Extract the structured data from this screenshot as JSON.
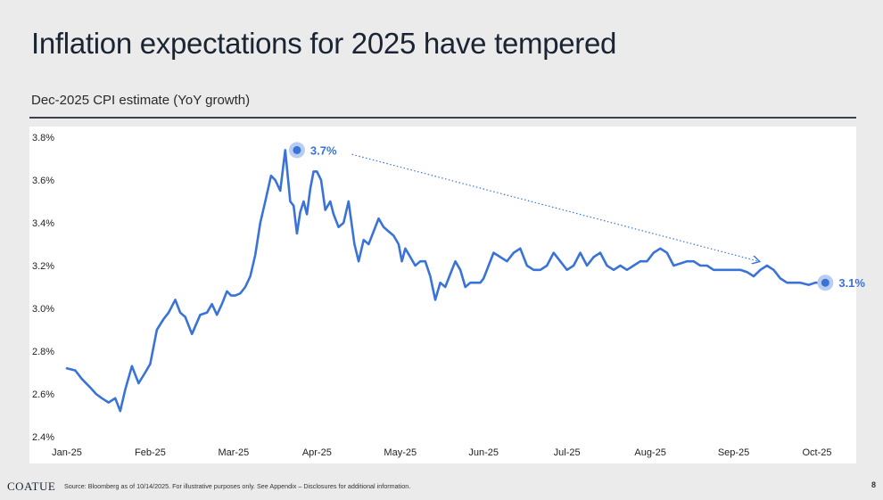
{
  "header": {
    "title": "Inflation expectations for 2025 have tempered",
    "subtitle": "Dec-2025 CPI estimate (YoY growth)"
  },
  "footer": {
    "logo": "COATUE",
    "source": "Source: Bloomberg as of 10/14/2025. For illustrative purposes only. See Appendix – Disclosures for additional information.",
    "page_number": "8"
  },
  "colors": {
    "line": "#3a73d8",
    "marker_halo": "#b9cdf2",
    "background": "#ebebeb",
    "panel": "#ffffff"
  },
  "chart_data": {
    "type": "line",
    "title": "Dec-2025 CPI estimate (YoY growth)",
    "xlabel": "",
    "ylabel": "",
    "ylim": [
      2.4,
      3.8
    ],
    "y_ticks": [
      2.4,
      2.6,
      2.8,
      3.0,
      3.2,
      3.4,
      3.6,
      3.8
    ],
    "y_tick_labels": [
      "2.4%",
      "2.6%",
      "2.8%",
      "3.0%",
      "3.2%",
      "3.4%",
      "3.6%",
      "3.8%"
    ],
    "x_tick_labels": [
      "Jan-25",
      "Feb-25",
      "Mar-25",
      "Apr-25",
      "May-25",
      "Jun-25",
      "Jul-25",
      "Aug-25",
      "Sep-25",
      "Oct-25"
    ],
    "grid": false,
    "series": [
      {
        "x": [
          0,
          0.1,
          0.18,
          0.28,
          0.35,
          0.42,
          0.5,
          0.58,
          0.64,
          0.7,
          0.78,
          0.86,
          0.94,
          1.0,
          1.08,
          1.16,
          1.22,
          1.3,
          1.36,
          1.42,
          1.5,
          1.6,
          1.68,
          1.74,
          1.8,
          1.86,
          1.92,
          1.97,
          2.02,
          2.08,
          2.14,
          2.2,
          2.26,
          2.32,
          2.38,
          2.45,
          2.5,
          2.56,
          2.62,
          2.68,
          2.72,
          2.76,
          2.8,
          2.84,
          2.88,
          2.92,
          2.96,
          3.0,
          3.05,
          3.1,
          3.16,
          3.2,
          3.26,
          3.32,
          3.38,
          3.45,
          3.5,
          3.56,
          3.62,
          3.68,
          3.74,
          3.8,
          3.86,
          3.92,
          3.98,
          4.02,
          4.06,
          4.12,
          4.18,
          4.24,
          4.3,
          4.36,
          4.42,
          4.48,
          4.54,
          4.6,
          4.66,
          4.72,
          4.78,
          4.84,
          4.9,
          4.96,
          5.0,
          5.06,
          5.12,
          5.2,
          5.28,
          5.36,
          5.44,
          5.52,
          5.6,
          5.68,
          5.76,
          5.84,
          5.92,
          6.0,
          6.08,
          6.16,
          6.24,
          6.32,
          6.4,
          6.48,
          6.56,
          6.64,
          6.72,
          6.8,
          6.88,
          6.96,
          7.04,
          7.12,
          7.2,
          7.28,
          7.36,
          7.44,
          7.52,
          7.6,
          7.68,
          7.76,
          7.84,
          7.92,
          8.0,
          8.08,
          8.16,
          8.24,
          8.32,
          8.4,
          8.48,
          8.56,
          8.64,
          8.72,
          8.8,
          8.9,
          8.98,
          9.05,
          9.1
        ],
        "values": [
          2.72,
          2.71,
          2.67,
          2.63,
          2.6,
          2.58,
          2.56,
          2.58,
          2.52,
          2.62,
          2.73,
          2.65,
          2.7,
          2.74,
          2.9,
          2.95,
          2.98,
          3.04,
          2.98,
          2.96,
          2.88,
          2.97,
          2.98,
          3.02,
          2.97,
          3.02,
          3.08,
          3.06,
          3.06,
          3.07,
          3.1,
          3.15,
          3.25,
          3.4,
          3.5,
          3.62,
          3.6,
          3.55,
          3.74,
          3.5,
          3.48,
          3.35,
          3.45,
          3.5,
          3.44,
          3.56,
          3.64,
          3.64,
          3.6,
          3.46,
          3.5,
          3.44,
          3.38,
          3.4,
          3.5,
          3.3,
          3.22,
          3.32,
          3.3,
          3.36,
          3.42,
          3.38,
          3.36,
          3.34,
          3.3,
          3.22,
          3.28,
          3.24,
          3.2,
          3.22,
          3.22,
          3.15,
          3.04,
          3.12,
          3.1,
          3.16,
          3.22,
          3.18,
          3.1,
          3.12,
          3.12,
          3.12,
          3.14,
          3.2,
          3.26,
          3.24,
          3.22,
          3.26,
          3.28,
          3.2,
          3.18,
          3.18,
          3.2,
          3.26,
          3.22,
          3.18,
          3.2,
          3.26,
          3.2,
          3.24,
          3.26,
          3.2,
          3.18,
          3.2,
          3.18,
          3.2,
          3.22,
          3.22,
          3.26,
          3.28,
          3.26,
          3.2,
          3.21,
          3.22,
          3.22,
          3.2,
          3.2,
          3.18,
          3.18,
          3.18,
          3.18,
          3.18,
          3.17,
          3.15,
          3.18,
          3.2,
          3.18,
          3.14,
          3.12,
          3.12,
          3.12,
          3.11,
          3.12,
          3.12,
          3.12
        ]
      }
    ],
    "annotations": [
      {
        "label": "3.7%",
        "x": 2.76,
        "y": 3.74
      },
      {
        "label": "3.1%",
        "x": 9.1,
        "y": 3.12
      }
    ],
    "trend_arrow": {
      "from": [
        3.42,
        3.72
      ],
      "to": [
        8.3,
        3.22
      ]
    }
  }
}
